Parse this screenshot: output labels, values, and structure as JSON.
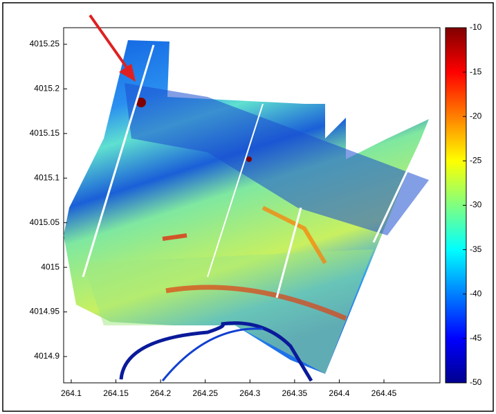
{
  "chart_data": {
    "type": "heatmap",
    "xlim": [
      264.0915,
      264.5127
    ],
    "xticks": [
      264.1,
      264.15,
      264.2,
      264.25,
      264.3,
      264.35,
      264.4,
      264.45
    ],
    "ylim": [
      4014.8705,
      4015.2686
    ],
    "yticks": [
      4015.25,
      4015.2,
      4015.15,
      4015.1,
      4015.05,
      4015,
      4014.95,
      4014.9
    ],
    "colorbar": {
      "lim": [
        -50,
        -10
      ],
      "ticks": [
        -10,
        -15,
        -20,
        -25,
        -30,
        -35,
        -40,
        -45,
        -50
      ],
      "colormap": [
        "#00008f",
        "#0000ff",
        "#0080ff",
        "#00ffff",
        "#80ff80",
        "#ffff00",
        "#ff8000",
        "#ff0000",
        "#800000"
      ]
    }
  }
}
